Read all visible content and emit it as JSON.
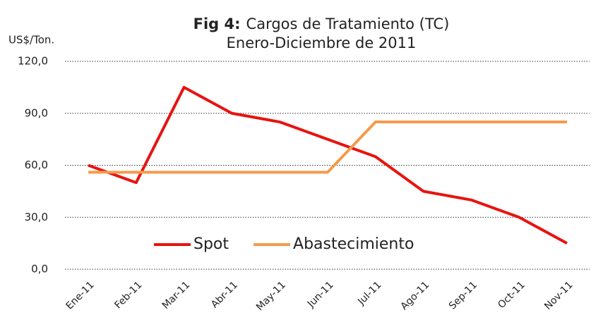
{
  "chart_data": {
    "type": "line",
    "title": {
      "label": "Fig 4:",
      "text": "Cargos de Tratamiento (TC)"
    },
    "subtitle": "Enero-Diciembre de 2011",
    "y_axis_label": "US$/Ton.",
    "categories": [
      "Ene-11",
      "Feb-11",
      "Mar-11",
      "Abr-11",
      "May-11",
      "Jun-11",
      "Jul-11",
      "Ago-11",
      "Sep-11",
      "Oct-11",
      "Nov-11"
    ],
    "series": [
      {
        "name": "Spot",
        "color": "#e8130f",
        "values": [
          60,
          50,
          105,
          90,
          85,
          75,
          65,
          45,
          40,
          30,
          15
        ]
      },
      {
        "name": "Abastecimiento",
        "color": "#f59a4c",
        "values": [
          56,
          56,
          56,
          56,
          56,
          56,
          85,
          85,
          85,
          85,
          85
        ]
      }
    ],
    "ylim": [
      0,
      120
    ],
    "yticks": [
      {
        "value": 0,
        "label": "0,0"
      },
      {
        "value": 30,
        "label": "30,0"
      },
      {
        "value": 60,
        "label": "60,0"
      },
      {
        "value": 90,
        "label": "90,0"
      },
      {
        "value": 120,
        "label": "120,0"
      }
    ],
    "grid": true,
    "legend": "center"
  }
}
